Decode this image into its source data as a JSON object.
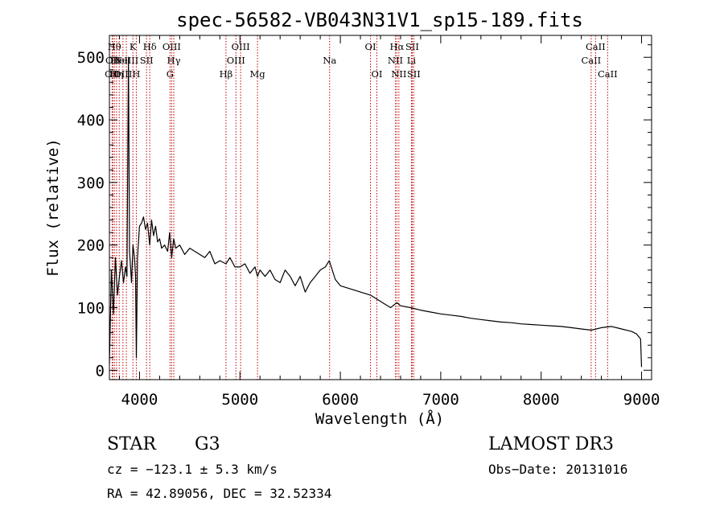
{
  "page": {
    "title": "spec-56582-VB043N31V1_sp15-189.fits"
  },
  "chart_data": {
    "type": "line",
    "title": "spec-56582-VB043N31V1_sp15-189.fits",
    "xlabel": "Wavelength (Å)",
    "ylabel": "Flux (relative)",
    "xlim": [
      3700,
      9100
    ],
    "ylim": [
      -15,
      535
    ],
    "x_ticks": [
      4000,
      5000,
      6000,
      7000,
      8000,
      9000
    ],
    "y_ticks": [
      0,
      100,
      200,
      300,
      400,
      500
    ],
    "series": [
      {
        "name": "spectrum",
        "x": [
          3700,
          3720,
          3740,
          3760,
          3780,
          3800,
          3820,
          3840,
          3860,
          3875,
          3890,
          3900,
          3920,
          3935,
          3950,
          3960,
          3968,
          3980,
          4000,
          4020,
          4040,
          4060,
          4080,
          4101,
          4120,
          4140,
          4160,
          4180,
          4200,
          4220,
          4250,
          4280,
          4300,
          4320,
          4340,
          4360,
          4400,
          4450,
          4500,
          4550,
          4600,
          4650,
          4700,
          4750,
          4800,
          4861,
          4900,
          4950,
          5000,
          5050,
          5100,
          5150,
          5175,
          5200,
          5250,
          5300,
          5350,
          5400,
          5450,
          5500,
          5550,
          5600,
          5650,
          5700,
          5750,
          5800,
          5850,
          5890,
          5950,
          6000,
          6100,
          6200,
          6300,
          6400,
          6500,
          6563,
          6600,
          6700,
          6800,
          6900,
          7000,
          7100,
          7200,
          7300,
          7400,
          7500,
          7600,
          7700,
          7800,
          7900,
          8000,
          8100,
          8200,
          8300,
          8400,
          8500,
          8600,
          8700,
          8800,
          8900,
          8950,
          8990,
          9000
        ],
        "values": [
          10,
          160,
          90,
          180,
          120,
          150,
          175,
          140,
          165,
          150,
          500,
          190,
          140,
          200,
          180,
          150,
          20,
          180,
          230,
          235,
          245,
          225,
          235,
          200,
          240,
          215,
          230,
          205,
          210,
          195,
          200,
          190,
          220,
          180,
          210,
          195,
          200,
          185,
          195,
          190,
          185,
          180,
          190,
          170,
          175,
          170,
          180,
          165,
          165,
          170,
          155,
          165,
          150,
          160,
          150,
          160,
          145,
          140,
          160,
          150,
          135,
          150,
          125,
          140,
          150,
          160,
          165,
          175,
          145,
          135,
          130,
          125,
          120,
          110,
          100,
          108,
          103,
          100,
          96,
          93,
          90,
          88,
          86,
          83,
          81,
          79,
          77,
          76,
          74,
          73,
          72,
          71,
          70,
          68,
          66,
          64,
          68,
          70,
          66,
          62,
          58,
          50,
          5
        ]
      }
    ],
    "line_markers": [
      {
        "wl": 3727,
        "label": "OII",
        "row": 3
      },
      {
        "wl": 3734,
        "label": "OII",
        "row": 2
      },
      {
        "wl": 3750,
        "label": "Hθ",
        "row": 1
      },
      {
        "wl": 3771,
        "label": "Hη",
        "row": 3
      },
      {
        "wl": 3798,
        "label": "HeI",
        "row": 2
      },
      {
        "wl": 3835,
        "label": "OIII",
        "row": 3
      },
      {
        "wl": 3869,
        "label": "NeIII",
        "row": 2
      },
      {
        "wl": 3934,
        "label": "K",
        "row": 1
      },
      {
        "wl": 3968,
        "label": "H",
        "row": 3
      },
      {
        "wl": 4070,
        "label": "SII",
        "row": 2
      },
      {
        "wl": 4102,
        "label": "Hδ",
        "row": 1
      },
      {
        "wl": 4304,
        "label": "G",
        "row": 3
      },
      {
        "wl": 4320,
        "label": "OIII",
        "row": 1
      },
      {
        "wl": 4341,
        "label": "Hγ",
        "row": 2
      },
      {
        "wl": 4861,
        "label": "Hβ",
        "row": 3
      },
      {
        "wl": 4960,
        "label": "OIII",
        "row": 2
      },
      {
        "wl": 5007,
        "label": "OIII",
        "row": 1
      },
      {
        "wl": 5175,
        "label": "Mg",
        "row": 3
      },
      {
        "wl": 5893,
        "label": "Na",
        "row": 2
      },
      {
        "wl": 6300,
        "label": "OI",
        "row": 1
      },
      {
        "wl": 6364,
        "label": "OI",
        "row": 3
      },
      {
        "wl": 6548,
        "label": "NII",
        "row": 2
      },
      {
        "wl": 6563,
        "label": "Hα",
        "row": 1
      },
      {
        "wl": 6583,
        "label": "NII",
        "row": 3
      },
      {
        "wl": 6708,
        "label": "Li",
        "row": 2
      },
      {
        "wl": 6716,
        "label": "SII",
        "row": 1
      },
      {
        "wl": 6731,
        "label": "SII",
        "row": 3
      },
      {
        "wl": 8498,
        "label": "CaII",
        "row": 2
      },
      {
        "wl": 8542,
        "label": "CaII",
        "row": 1
      },
      {
        "wl": 8662,
        "label": "CaII",
        "row": 3
      }
    ]
  },
  "info": {
    "class_label": "STAR",
    "subclass": "G3",
    "survey": "LAMOST DR3",
    "redshift_line": "cz = −123.1 ± 5.3 km/s",
    "obs_date_line": "Obs−Date: 20131016",
    "coords_line": "RA =  42.89056, DEC =  32.52334"
  },
  "colors": {
    "background": "#ffffff",
    "foreground": "#000000",
    "marker_line": "#c00000"
  }
}
